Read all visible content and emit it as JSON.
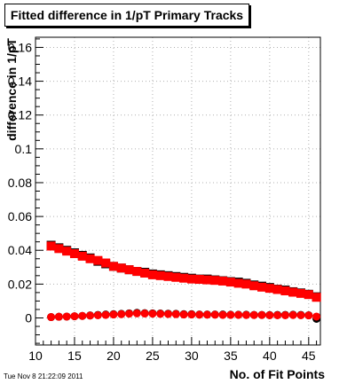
{
  "chart_data": {
    "type": "scatter",
    "title": "Fitted difference in 1/pT Primary Tracks",
    "xlabel": "No. of Fit Points",
    "ylabel": "difference in 1/pT",
    "xlim": [
      10,
      46.5
    ],
    "ylim": [
      -0.016,
      0.166
    ],
    "x_ticks": [
      10,
      15,
      20,
      25,
      30,
      35,
      40,
      45
    ],
    "x_tick_labels": [
      "10",
      "15",
      "20",
      "25",
      "30",
      "35",
      "40",
      "45"
    ],
    "y_ticks": [
      0,
      0.02,
      0.04,
      0.06,
      0.08,
      0.1,
      0.12,
      0.14,
      0.16
    ],
    "y_tick_labels": [
      "0",
      "0.02",
      "0.04",
      "0.06",
      "0.08",
      "0.1",
      "0.12",
      "0.14",
      "0.16"
    ],
    "grid": true,
    "series": [
      {
        "color": "#000000",
        "marker": "square",
        "x": [
          12,
          13,
          14,
          15,
          16,
          17,
          18,
          19,
          20,
          21,
          22,
          23,
          24,
          25,
          26,
          27,
          28,
          29,
          30,
          31,
          32,
          33,
          34,
          35,
          36,
          37,
          38,
          39,
          40,
          41,
          42,
          43,
          44,
          45,
          46
        ],
        "y": [
          0.043,
          0.0415,
          0.04,
          0.0385,
          0.037,
          0.0355,
          0.0335,
          0.032,
          0.0305,
          0.0295,
          0.0285,
          0.0275,
          0.027,
          0.026,
          0.0255,
          0.025,
          0.0245,
          0.024,
          0.0235,
          0.023,
          0.023,
          0.0225,
          0.022,
          0.0215,
          0.0212,
          0.0205,
          0.0195,
          0.0188,
          0.018,
          0.017,
          0.0165,
          0.0155,
          0.0148,
          0.014,
          0.0125
        ]
      },
      {
        "color": "#ff0000",
        "marker": "square",
        "x": [
          12,
          13,
          14,
          15,
          16,
          17,
          18,
          19,
          20,
          21,
          22,
          23,
          24,
          25,
          26,
          27,
          28,
          29,
          30,
          31,
          32,
          33,
          34,
          35,
          36,
          37,
          38,
          39,
          40,
          41,
          42,
          43,
          44,
          45,
          46
        ],
        "y": [
          0.0425,
          0.041,
          0.0395,
          0.038,
          0.0365,
          0.035,
          0.034,
          0.0325,
          0.0305,
          0.0295,
          0.0285,
          0.0275,
          0.0265,
          0.0255,
          0.025,
          0.0245,
          0.024,
          0.0235,
          0.023,
          0.0228,
          0.0225,
          0.0222,
          0.0218,
          0.0212,
          0.0205,
          0.02,
          0.019,
          0.0182,
          0.0175,
          0.0168,
          0.016,
          0.0152,
          0.0145,
          0.0138,
          0.0122
        ]
      },
      {
        "color": "#000000",
        "marker": "circle",
        "x": [
          12,
          13,
          14,
          15,
          16,
          17,
          18,
          19,
          20,
          21,
          22,
          23,
          24,
          25,
          26,
          27,
          28,
          29,
          30,
          31,
          32,
          33,
          34,
          35,
          36,
          37,
          38,
          39,
          40,
          41,
          42,
          43,
          44,
          45,
          46
        ],
        "y": [
          0.0005,
          0.0007,
          0.0008,
          0.001,
          0.0012,
          0.0015,
          0.0018,
          0.002,
          0.0022,
          0.0024,
          0.0027,
          0.003,
          0.0028,
          0.0027,
          0.0026,
          0.0025,
          0.0024,
          0.0022,
          0.0022,
          0.002,
          0.002,
          0.002,
          0.002,
          0.0019,
          0.0019,
          0.0019,
          0.0018,
          0.0018,
          0.0017,
          0.0018,
          0.0018,
          0.0019,
          0.0018,
          0.0016,
          -0.0005
        ]
      },
      {
        "color": "#ff0000",
        "marker": "circle",
        "x": [
          12,
          13,
          14,
          15,
          16,
          17,
          18,
          19,
          20,
          21,
          22,
          23,
          24,
          25,
          26,
          27,
          28,
          29,
          30,
          31,
          32,
          33,
          34,
          35,
          36,
          37,
          38,
          39,
          40,
          41,
          42,
          43,
          44,
          45,
          46
        ],
        "y": [
          0.0005,
          0.0007,
          0.0008,
          0.001,
          0.0012,
          0.0014,
          0.0016,
          0.0018,
          0.002,
          0.0022,
          0.0025,
          0.0027,
          0.0026,
          0.0025,
          0.0024,
          0.0023,
          0.0022,
          0.002,
          0.002,
          0.0019,
          0.0019,
          0.0019,
          0.0018,
          0.0018,
          0.0018,
          0.0017,
          0.0017,
          0.0017,
          0.0016,
          0.0016,
          0.0016,
          0.0017,
          0.0016,
          0.0015,
          0.0008
        ]
      }
    ]
  },
  "footer": {
    "timestamp": "Tue Nov  8 21:22:09 2011"
  }
}
